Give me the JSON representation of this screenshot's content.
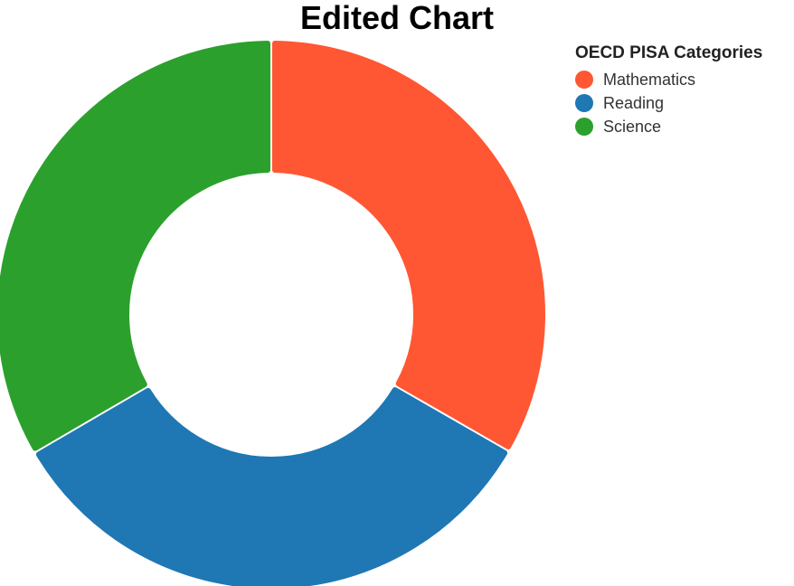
{
  "chart_data": {
    "type": "pie",
    "title": "Edited Chart",
    "legend_title": "OECD PISA Categories",
    "legend_position": "top-right",
    "categories": [
      "Mathematics",
      "Reading",
      "Science"
    ],
    "values": [
      33.3,
      33.3,
      33.4
    ],
    "colors": [
      "#ff5733",
      "#1f77b4",
      "#2ca02c"
    ]
  }
}
